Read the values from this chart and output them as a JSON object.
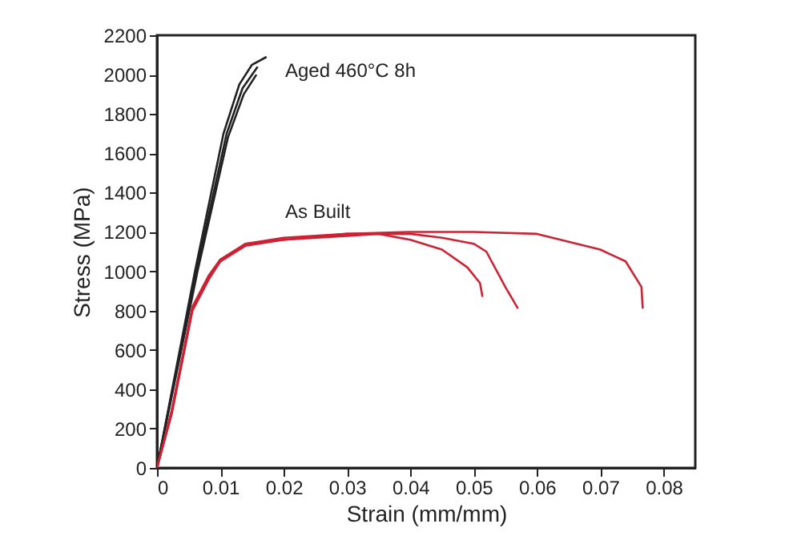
{
  "chart_data": {
    "type": "line",
    "xlabel": "Strain (mm/mm)",
    "ylabel": "Stress (MPa)",
    "xlim": [
      0,
      0.085
    ],
    "xticks": [
      0,
      0.01,
      0.02,
      0.03,
      0.04,
      0.05,
      0.06,
      0.07,
      0.08
    ],
    "ylim": [
      0,
      2200
    ],
    "yticks": [
      0,
      200,
      400,
      600,
      800,
      1000,
      1200,
      1400,
      1600,
      1800,
      2000,
      2200
    ],
    "grid": false,
    "marker": "none",
    "line_style": "solid",
    "annotations": [
      "Aged 460°C 8h",
      "As Built"
    ],
    "series": [
      {
        "color": "#222222",
        "x": [
          0,
          0.006,
          0.0105,
          0.013,
          0.015,
          0.0173
        ],
        "values": [
          0,
          1000,
          1700,
          1950,
          2050,
          2090
        ]
      },
      {
        "color": "#222222",
        "x": [
          0,
          0.0062,
          0.011,
          0.0135,
          0.0159
        ],
        "values": [
          0,
          1000,
          1700,
          1930,
          2040
        ]
      },
      {
        "color": "#222222",
        "x": [
          0,
          0.0064,
          0.0112,
          0.0137,
          0.0157
        ],
        "values": [
          0,
          1000,
          1680,
          1900,
          2000
        ]
      },
      {
        "color": "#cc2233",
        "x": [
          0,
          0.0023,
          0.0056,
          0.0082,
          0.01,
          0.014,
          0.02,
          0.03,
          0.035,
          0.04,
          0.045,
          0.049,
          0.051,
          0.0514
        ],
        "values": [
          0,
          270,
          800,
          960,
          1050,
          1130,
          1160,
          1180,
          1190,
          1160,
          1110,
          1020,
          940,
          870
        ]
      },
      {
        "color": "#cc2233",
        "x": [
          0,
          0.0023,
          0.0056,
          0.0082,
          0.01,
          0.014,
          0.02,
          0.03,
          0.04,
          0.045,
          0.05,
          0.052,
          0.055,
          0.057
        ],
        "values": [
          0,
          280,
          810,
          970,
          1050,
          1140,
          1160,
          1190,
          1190,
          1170,
          1140,
          1100,
          920,
          810
        ]
      },
      {
        "color": "#cc2233",
        "x": [
          0,
          0.0023,
          0.0056,
          0.0082,
          0.01,
          0.014,
          0.02,
          0.03,
          0.04,
          0.05,
          0.06,
          0.07,
          0.074,
          0.0765,
          0.0767
        ],
        "values": [
          0,
          290,
          820,
          980,
          1060,
          1140,
          1170,
          1190,
          1200,
          1200,
          1190,
          1110,
          1050,
          920,
          810
        ]
      }
    ]
  }
}
